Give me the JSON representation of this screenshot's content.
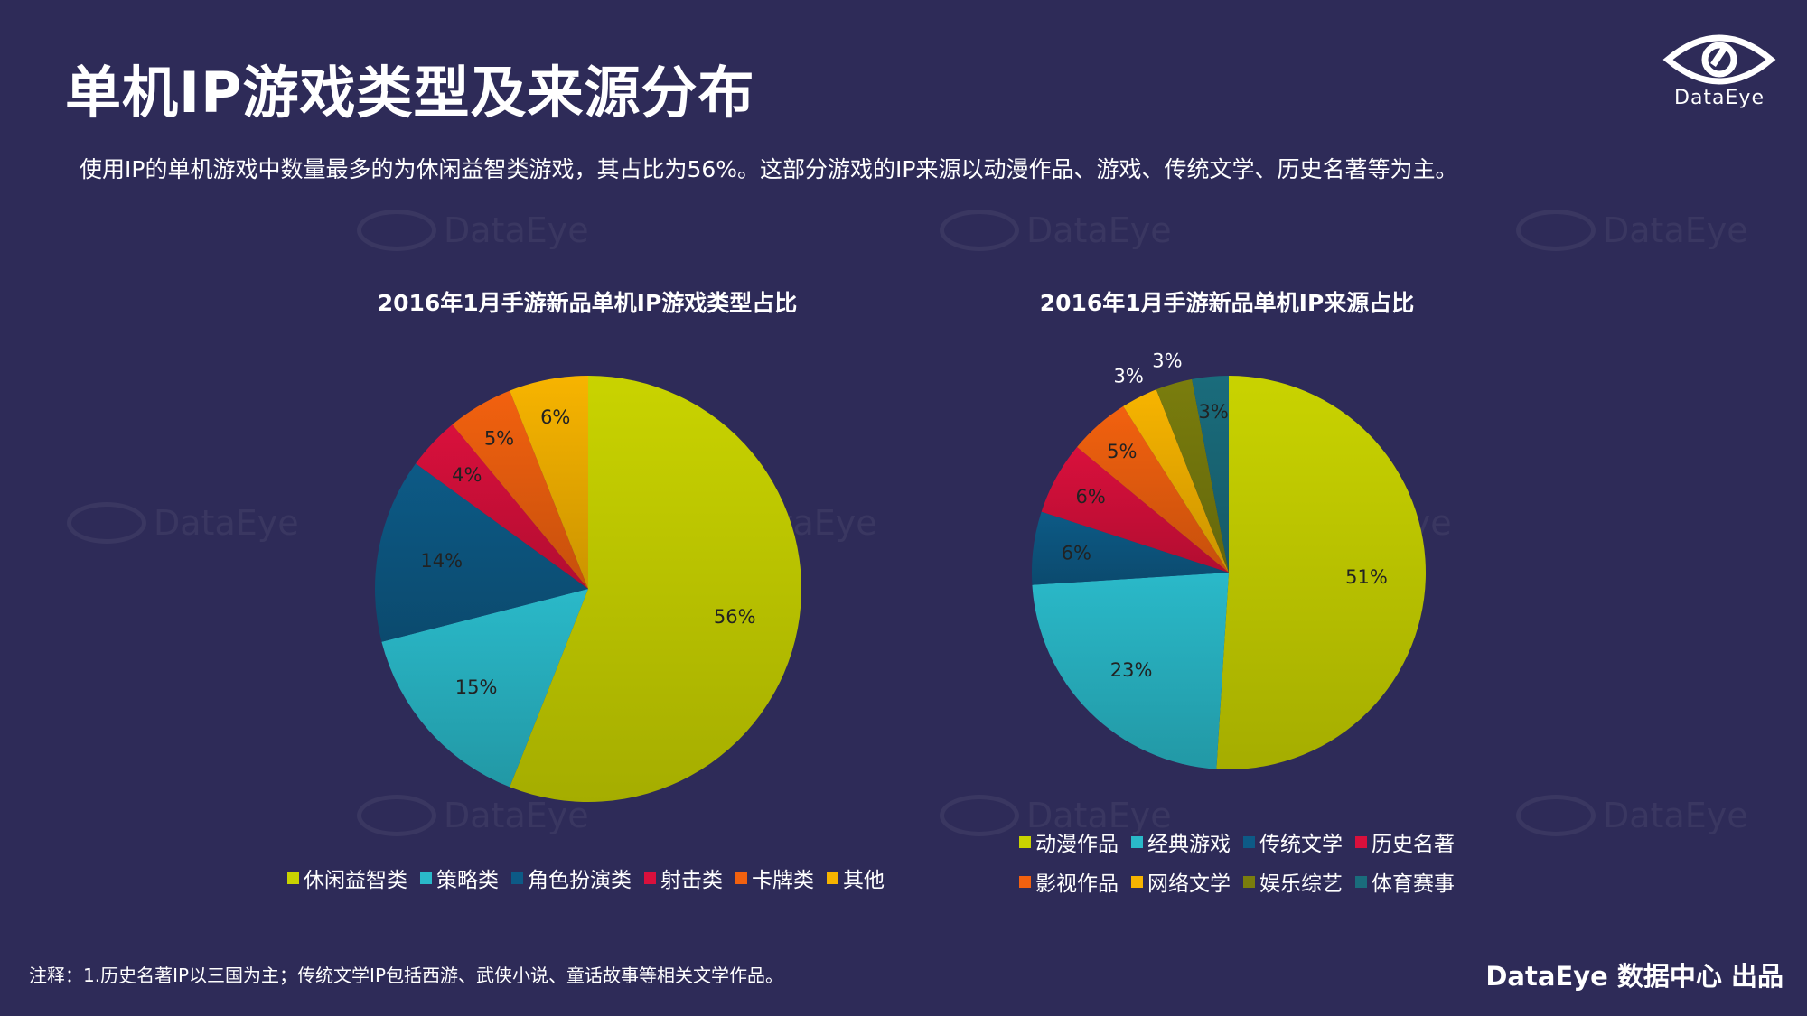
{
  "page": {
    "title": "单机IP游戏类型及来源分布",
    "subtitle": "使用IP的单机游戏中数量最多的为休闲益智类游戏，其占比为56%。这部分游戏的IP来源以动漫作品、游戏、传统文学、历史名著等为主。",
    "logo_text": "DataEye",
    "watermark_text": "DataEye",
    "footnote": "注释：1.历史名著IP以三国为主；传统文学IP包括西游、武侠小说、童话故事等相关文学作品。",
    "credit": "DataEye 数据中心 出品"
  },
  "chart_data": [
    {
      "type": "pie",
      "title": "2016年1月手游新品单机IP游戏类型占比",
      "categories": [
        "休闲益智类",
        "策略类",
        "角色扮演类",
        "射击类",
        "卡牌类",
        "其他"
      ],
      "values": [
        56,
        15,
        14,
        4,
        5,
        6
      ],
      "labels": [
        "56%",
        "15%",
        "14%",
        "4%",
        "5%",
        "6%"
      ],
      "colors": [
        "#c9d300",
        "#2ab9c9",
        "#0d5a86",
        "#d9103c",
        "#f2610f",
        "#f7b400"
      ],
      "legend": "bottom"
    },
    {
      "type": "pie",
      "title": "2016年1月手游新品单机IP来源占比",
      "categories": [
        "动漫作品",
        "经典游戏",
        "传统文学",
        "历史名著",
        "影视作品",
        "网络文学",
        "娱乐综艺",
        "体育赛事"
      ],
      "values": [
        51,
        23,
        6,
        6,
        5,
        3,
        3,
        3
      ],
      "labels": [
        "51%",
        "23%",
        "6%",
        "6%",
        "5%",
        "3%",
        "3%",
        "3%"
      ],
      "colors": [
        "#c9d300",
        "#2ab9c9",
        "#0d5a86",
        "#d9103c",
        "#f2610f",
        "#f7b400",
        "#7a7d0d",
        "#1a6c7c"
      ],
      "legend": "bottom"
    }
  ]
}
